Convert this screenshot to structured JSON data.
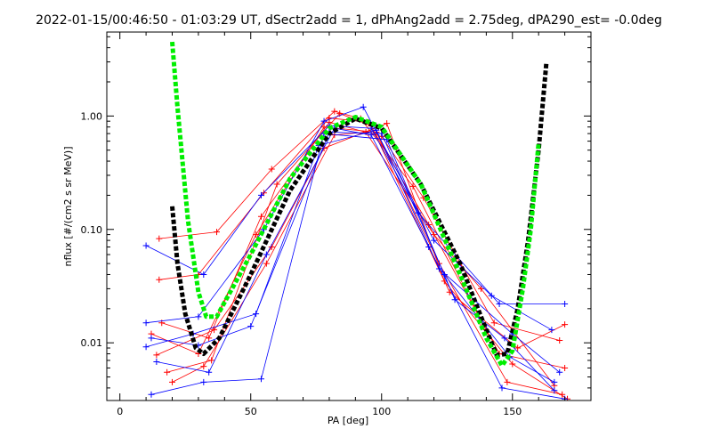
{
  "chart_data": {
    "type": "line",
    "title": "2022-01-15/00:46:50 - 01:03:29 UT, dSectr2add = 1, dPhAng2add = 2.75deg, dPA290_est=  -0.0deg",
    "xlabel": "PA [deg]",
    "ylabel": "nflux [#/(cm2 s sr MeV)]",
    "xlim": [
      -5,
      180
    ],
    "ylim": [
      0.0031,
      5.5
    ],
    "y_scale": "log",
    "x_ticks": [
      0,
      50,
      100,
      150
    ],
    "x_tick_labels": [
      "0",
      "50",
      "100",
      "150"
    ],
    "y_ticks": [
      0.01,
      0.1,
      1.0
    ],
    "y_tick_labels": [
      "0.01",
      "0.10",
      "1.00"
    ],
    "colors": {
      "red": "#ff0000",
      "blue": "#0000ff",
      "black": "#000000",
      "green": "#00ee00"
    },
    "series": [
      {
        "color": "red",
        "points": [
          [
            15,
            0.083
          ],
          [
            37,
            0.095
          ],
          [
            58,
            0.34
          ],
          [
            82,
            1.1
          ],
          [
            92,
            0.95
          ],
          [
            112,
            0.24
          ],
          [
            140,
            0.013
          ]
        ]
      },
      {
        "color": "red",
        "points": [
          [
            15,
            0.036
          ],
          [
            30,
            0.04
          ],
          [
            55,
            0.21
          ],
          [
            80,
            0.96
          ],
          [
            95,
            0.88
          ],
          [
            118,
            0.11
          ],
          [
            145,
            0.008
          ],
          [
            170,
            0.006
          ]
        ]
      },
      {
        "color": "red",
        "points": [
          [
            12,
            0.012
          ],
          [
            30,
            0.008
          ],
          [
            52,
            0.09
          ],
          [
            78,
            0.8
          ],
          [
            98,
            0.72
          ],
          [
            122,
            0.05
          ],
          [
            148,
            0.0045
          ],
          [
            169,
            0.0035
          ]
        ]
      },
      {
        "color": "red",
        "points": [
          [
            18,
            0.0055
          ],
          [
            35,
            0.007
          ],
          [
            60,
            0.25
          ],
          [
            84,
            1.05
          ],
          [
            96,
            0.82
          ],
          [
            126,
            0.028
          ],
          [
            152,
            0.009
          ],
          [
            170,
            0.0145
          ]
        ]
      },
      {
        "color": "red",
        "points": [
          [
            16,
            0.015
          ],
          [
            34,
            0.011
          ],
          [
            54,
            0.13
          ],
          [
            80,
            0.88
          ],
          [
            100,
            0.66
          ],
          [
            116,
            0.19
          ],
          [
            143,
            0.015
          ],
          [
            168,
            0.0105
          ]
        ]
      },
      {
        "color": "red",
        "points": [
          [
            20,
            0.0045
          ],
          [
            32,
            0.0062
          ],
          [
            56,
            0.05
          ],
          [
            82,
            0.68
          ],
          [
            94,
            0.72
          ],
          [
            120,
            0.09
          ],
          [
            138,
            0.03
          ],
          [
            166,
            0.0042
          ]
        ]
      },
      {
        "color": "red",
        "points": [
          [
            14,
            0.0078
          ],
          [
            36,
            0.013
          ],
          [
            58,
            0.07
          ],
          [
            78,
            0.52
          ],
          [
            102,
            0.86
          ],
          [
            124,
            0.035
          ],
          [
            150,
            0.0065
          ],
          [
            171,
            0.0032
          ]
        ]
      },
      {
        "color": "blue",
        "points": [
          [
            10,
            0.072
          ],
          [
            32,
            0.04
          ],
          [
            54,
            0.2
          ],
          [
            80,
            0.82
          ],
          [
            96,
            0.78
          ],
          [
            114,
            0.14
          ],
          [
            145,
            0.022
          ],
          [
            170,
            0.022
          ]
        ]
      },
      {
        "color": "blue",
        "points": [
          [
            10,
            0.015
          ],
          [
            30,
            0.017
          ],
          [
            55,
            0.1
          ],
          [
            78,
            0.9
          ],
          [
            93,
            1.2
          ],
          [
            120,
            0.08
          ],
          [
            142,
            0.026
          ],
          [
            165,
            0.013
          ]
        ]
      },
      {
        "color": "blue",
        "points": [
          [
            10,
            0.0092
          ],
          [
            28,
            0.012
          ],
          [
            52,
            0.018
          ],
          [
            76,
            0.55
          ],
          [
            98,
            0.75
          ],
          [
            122,
            0.045
          ],
          [
            150,
            0.012
          ],
          [
            168,
            0.0055
          ]
        ]
      },
      {
        "color": "blue",
        "points": [
          [
            12,
            0.0035
          ],
          [
            32,
            0.0045
          ],
          [
            54,
            0.0048
          ],
          [
            78,
            0.7
          ],
          [
            102,
            0.62
          ],
          [
            128,
            0.024
          ],
          [
            147,
            0.011
          ],
          [
            166,
            0.0038
          ]
        ]
      },
      {
        "color": "blue",
        "points": [
          [
            14,
            0.0068
          ],
          [
            34,
            0.0055
          ],
          [
            56,
            0.06
          ],
          [
            82,
            0.78
          ],
          [
            96,
            0.68
          ],
          [
            118,
            0.07
          ],
          [
            146,
            0.004
          ],
          [
            170,
            0.0032
          ]
        ]
      },
      {
        "color": "blue",
        "points": [
          [
            12,
            0.011
          ],
          [
            30,
            0.0095
          ],
          [
            50,
            0.014
          ],
          [
            80,
            0.72
          ],
          [
            100,
            0.7
          ],
          [
            124,
            0.04
          ],
          [
            149,
            0.0075
          ],
          [
            166,
            0.0045
          ]
        ]
      }
    ],
    "fits": [
      {
        "color": "black",
        "points": [
          [
            20,
            0.16
          ],
          [
            22,
            0.05
          ],
          [
            25,
            0.018
          ],
          [
            29,
            0.009
          ],
          [
            32,
            0.008
          ],
          [
            38,
            0.011
          ],
          [
            50,
            0.04
          ],
          [
            65,
            0.22
          ],
          [
            80,
            0.7
          ],
          [
            90,
            0.95
          ],
          [
            100,
            0.78
          ],
          [
            115,
            0.25
          ],
          [
            130,
            0.05
          ],
          [
            140,
            0.013
          ],
          [
            144,
            0.0078
          ],
          [
            148,
            0.008
          ],
          [
            152,
            0.02
          ],
          [
            156,
            0.08
          ],
          [
            160,
            0.5
          ],
          [
            163,
            3.0
          ]
        ]
      },
      {
        "color": "green",
        "points": [
          [
            20,
            4.5
          ],
          [
            22,
            1.2
          ],
          [
            26,
            0.12
          ],
          [
            30,
            0.028
          ],
          [
            33,
            0.017
          ],
          [
            37,
            0.017
          ],
          [
            50,
            0.06
          ],
          [
            65,
            0.28
          ],
          [
            80,
            0.78
          ],
          [
            90,
            0.98
          ],
          [
            100,
            0.8
          ],
          [
            115,
            0.25
          ],
          [
            130,
            0.04
          ],
          [
            140,
            0.011
          ],
          [
            146,
            0.0063
          ],
          [
            150,
            0.0085
          ],
          [
            154,
            0.03
          ],
          [
            157,
            0.1
          ],
          [
            160,
            0.58
          ]
        ]
      }
    ]
  }
}
